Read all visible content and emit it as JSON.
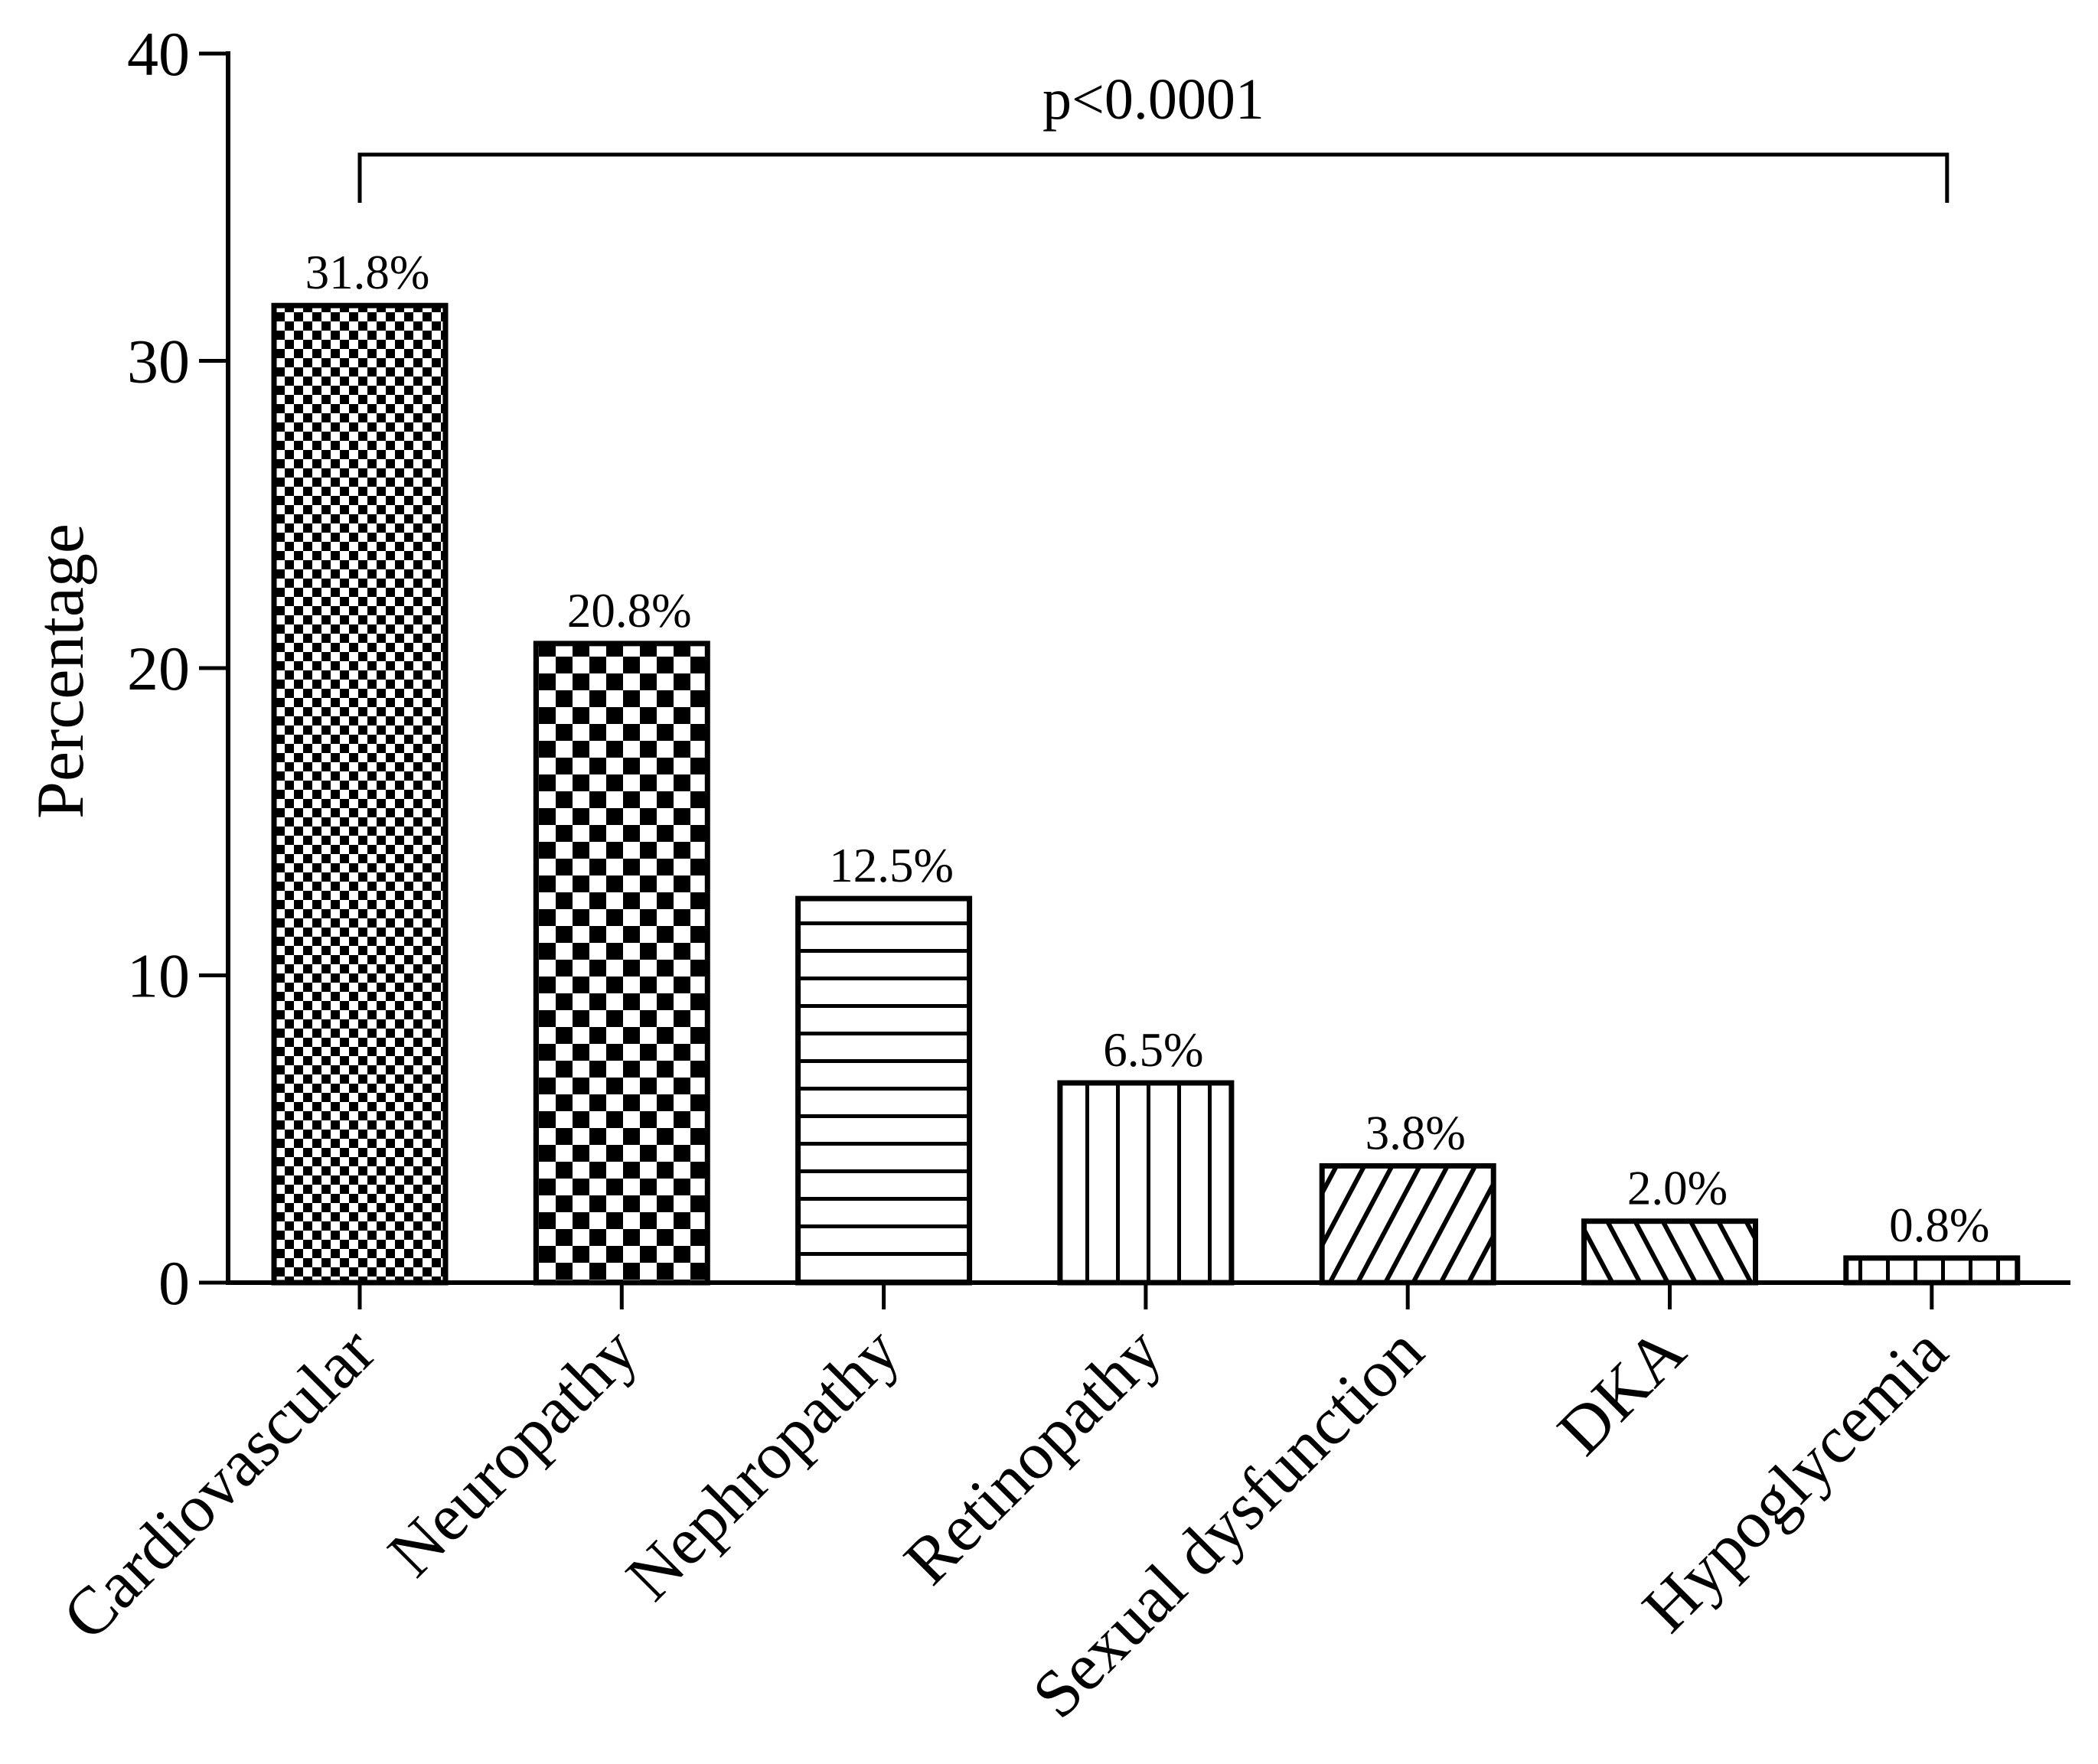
{
  "chart_data": {
    "type": "bar",
    "title": "",
    "xlabel": "",
    "ylabel": "Percentage",
    "ylim": [
      0,
      40
    ],
    "yticks": [
      0,
      10,
      20,
      30,
      40
    ],
    "grid": false,
    "categories": [
      "Cardiovascular",
      "Neuropathy",
      "Nephropathy",
      "Retinopathy",
      "Sexual dysfunction",
      "DKA",
      "Hypoglycemia"
    ],
    "values": [
      31.8,
      20.8,
      12.5,
      6.5,
      3.8,
      2.0,
      0.8
    ],
    "data_labels": [
      "31.8%",
      "20.8%",
      "12.5%",
      "6.5%",
      "3.8%",
      "2.0%",
      "0.8%"
    ],
    "bar_patterns": [
      "fine-checker",
      "coarse-checker",
      "horizontal-lines",
      "vertical-lines",
      "forward-diagonal",
      "back-diagonal",
      "vertical-lines-dense"
    ],
    "colors": {
      "stroke": "#000000",
      "fill": "#ffffff"
    },
    "annotation": {
      "text": "p<0.0001",
      "from": "Cardiovascular",
      "to": "Hypoglycemia"
    }
  }
}
